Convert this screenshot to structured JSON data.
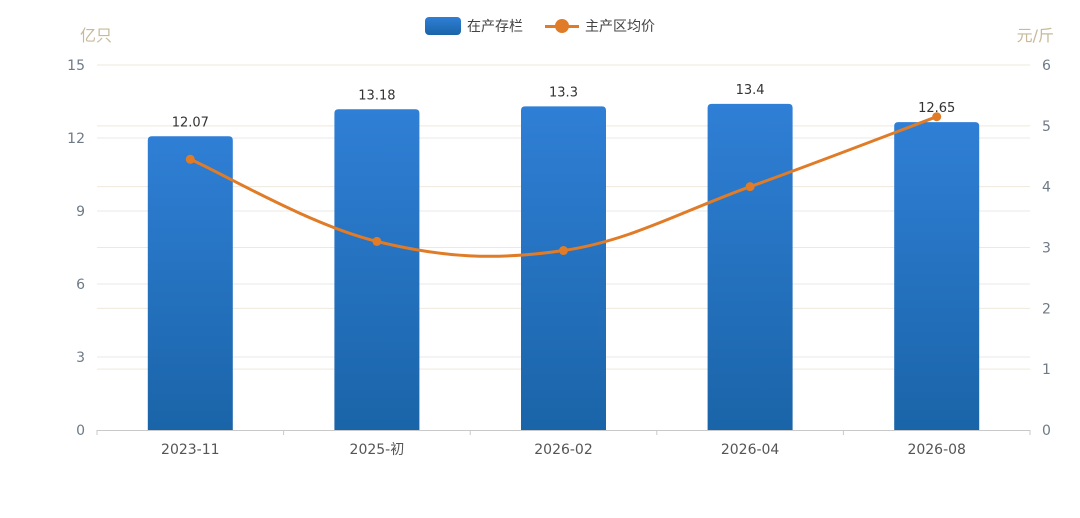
{
  "chart_data": {
    "type": "bar",
    "categories": [
      "2023-11",
      "2025-初",
      "2026-02",
      "2026-04",
      "2026-08"
    ],
    "series": [
      {
        "name": "在产存栏",
        "type": "bar",
        "axis": "left",
        "values": [
          12.07,
          13.18,
          13.3,
          13.4,
          12.65
        ],
        "labels": [
          "12.07",
          "13.18",
          "13.3",
          "13.4",
          "12.65"
        ]
      },
      {
        "name": "主产区均价",
        "type": "line",
        "axis": "right",
        "values": [
          4.45,
          3.1,
          2.95,
          4.0,
          5.15
        ]
      }
    ],
    "y_left": {
      "unit": "亿只",
      "min": 0,
      "max": 15,
      "ticks": [
        0,
        3,
        6,
        9,
        12,
        15
      ],
      "tick_labels": [
        "0",
        "3",
        "6",
        "9",
        "12",
        "15"
      ]
    },
    "y_right": {
      "unit": "元/斤",
      "min": 0,
      "max": 6,
      "ticks": [
        0,
        1,
        2,
        3,
        4,
        5,
        6
      ],
      "tick_labels": [
        "0",
        "1",
        "2",
        "3",
        "4",
        "5",
        "6"
      ]
    },
    "legend_position": "top-center",
    "colors": {
      "bar_top": "#2f7fd6",
      "bar_bottom": "#1a64a8",
      "line": "#e07c27",
      "grid": "#e8e8e8",
      "axis_text": "#6e7a86",
      "unit_text": "#c8b99a",
      "label_text": "#333333"
    }
  }
}
